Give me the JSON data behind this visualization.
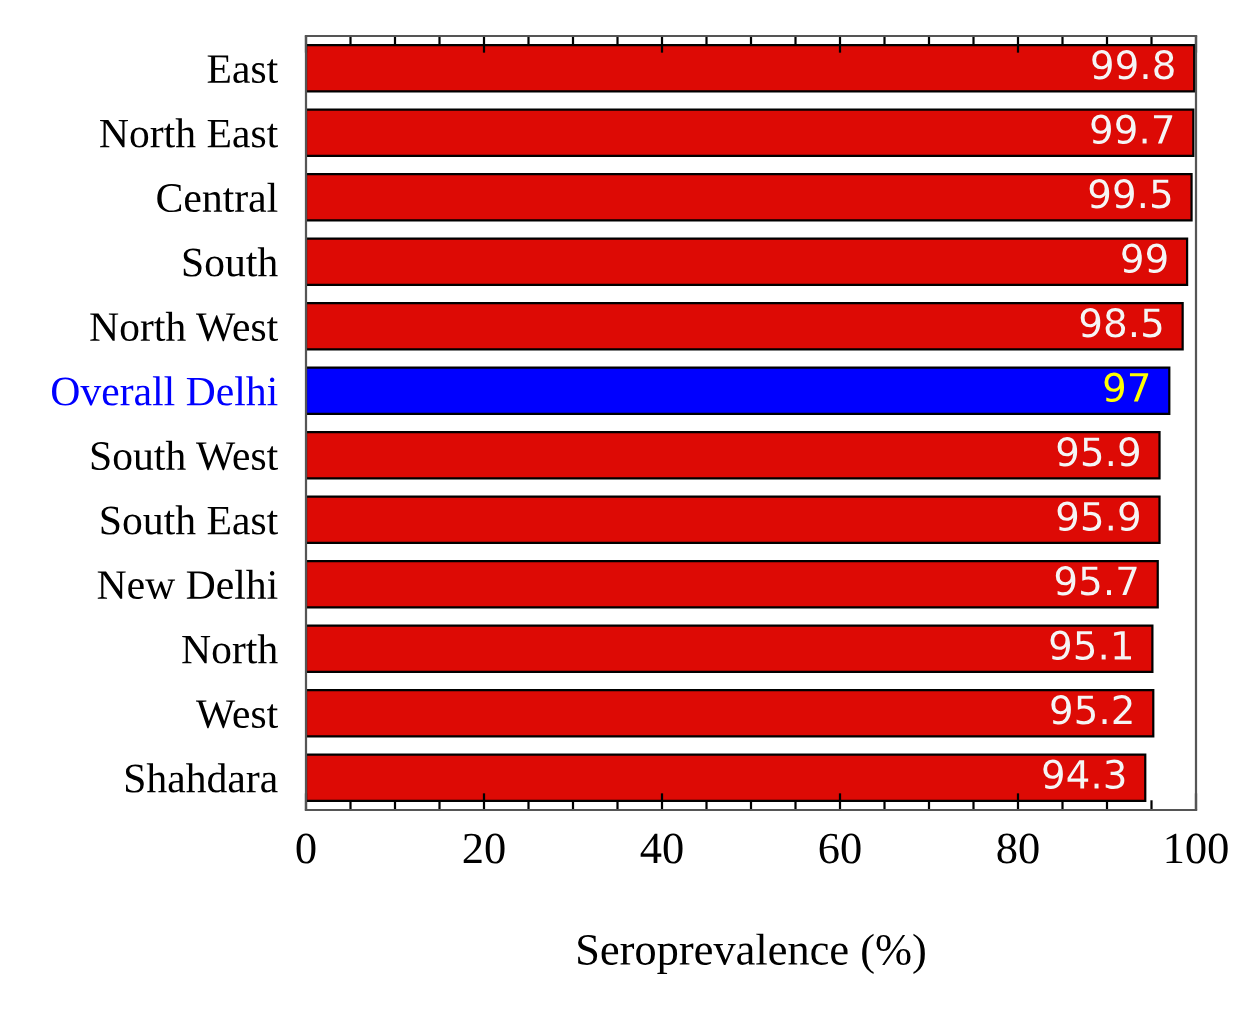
{
  "chart_data": {
    "type": "bar",
    "orientation": "horizontal",
    "xlabel": "Seroprevalence (%)",
    "categories": [
      "East",
      "North East",
      "Central",
      "South",
      "North West",
      "Overall Delhi",
      "South West",
      "South East",
      "New Delhi",
      "North",
      "West",
      "Shahdara"
    ],
    "values": [
      99.8,
      99.7,
      99.5,
      99,
      98.5,
      97,
      95.9,
      95.9,
      95.7,
      95.1,
      95.2,
      94.3
    ],
    "colors": [
      "#dd0a05",
      "#dd0a05",
      "#dd0a05",
      "#dd0a05",
      "#dd0a05",
      "#0000ff",
      "#dd0a05",
      "#dd0a05",
      "#dd0a05",
      "#dd0a05",
      "#dd0a05",
      "#dd0a05"
    ],
    "data_labels": true,
    "xlim": [
      0,
      100
    ],
    "xticks": [
      0,
      {
        "value": 5,
        "label": null
      },
      {
        "value": 10,
        "label": null
      },
      {
        "value": 15,
        "label": null
      },
      20,
      {
        "value": 25,
        "label": null
      },
      {
        "value": 30,
        "label": null
      },
      {
        "value": 35,
        "label": null
      },
      40,
      {
        "value": 45,
        "label": null
      },
      {
        "value": 50,
        "label": null
      },
      {
        "value": 55,
        "label": null
      },
      60,
      {
        "value": 65,
        "label": null
      },
      {
        "value": 70,
        "label": null
      },
      {
        "value": 75,
        "label": null
      },
      80,
      {
        "value": 85,
        "label": null
      },
      {
        "value": 90,
        "label": null
      },
      {
        "value": 95,
        "label": null
      },
      100
    ],
    "grid": false
  }
}
